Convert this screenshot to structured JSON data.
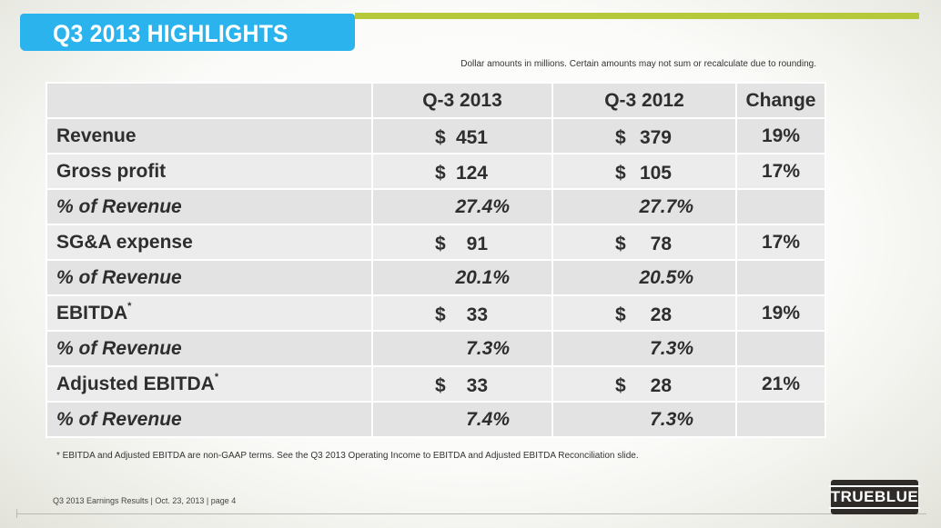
{
  "slide": {
    "title": "Q3 2013 HIGHLIGHTS",
    "note": "Dollar amounts in millions. Certain amounts may not sum or recalculate due to rounding.",
    "footnote": "* EBITDA and Adjusted EBITDA are non-GAAP terms.  See the Q3 2013 Operating Income to EBITDA and Adjusted EBITDA Reconciliation slide.",
    "footer": "Q3 2013 Earnings Results | Oct. 23, 2013  | page 4",
    "logo": "TRUEBLUE",
    "colors": {
      "title_tab": "#2ab3ec",
      "accent_bar": "#b6c93a",
      "table_bg": "#e3e3e3"
    }
  },
  "table": {
    "headers": [
      "Q-3 2013",
      "Q-3 2012",
      "Change"
    ],
    "rows": [
      {
        "label": "Revenue",
        "q3_2013": "451",
        "q3_2012": "379",
        "change": "19%"
      },
      {
        "label": "Gross profit",
        "q3_2013": "124",
        "q3_2012": "105",
        "change": "17%"
      },
      {
        "label": "% of Revenue",
        "q3_2013": "27.4%",
        "q3_2012": "27.7%",
        "change": ""
      },
      {
        "label": "SG&A expense",
        "q3_2013": "91",
        "q3_2012": "78",
        "change": "17%"
      },
      {
        "label": "% of Revenue",
        "q3_2013": "20.1%",
        "q3_2012": "20.5%",
        "change": ""
      },
      {
        "label": "EBITDA",
        "q3_2013": "33",
        "q3_2012": "28",
        "change": "19%"
      },
      {
        "label": "% of Revenue",
        "q3_2013": "7.3%",
        "q3_2012": "7.3%",
        "change": ""
      },
      {
        "label": "Adjusted EBITDA",
        "q3_2013": "33",
        "q3_2012": "28",
        "change": "21%"
      },
      {
        "label": "% of Revenue",
        "q3_2013": "7.4%",
        "q3_2012": "7.3%",
        "change": ""
      }
    ],
    "currency_symbol": "$",
    "footnote_marker": "*"
  }
}
